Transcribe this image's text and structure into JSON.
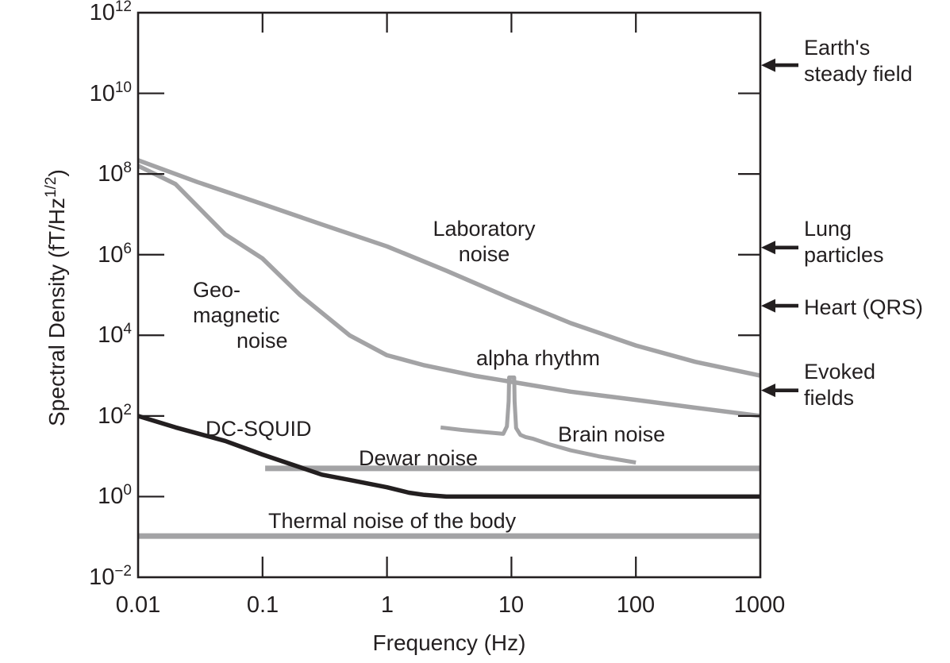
{
  "colors": {
    "curve_gray": "#a3a3a5",
    "curve_black": "#231f20",
    "frame": "#231f20",
    "text": "#231f20"
  },
  "chart_data": {
    "type": "line",
    "title": "",
    "xlabel": "Frequency (Hz)",
    "ylabel": "Spectral Density (fT/Hz^1/2)",
    "x_scale": "log",
    "y_scale": "log",
    "xlim": [
      0.01,
      1000
    ],
    "ylim": [
      0.01,
      1000000000000.0
    ],
    "grid": false,
    "legend": "labels drawn next to curves",
    "x_ticks": [
      {
        "log": -2,
        "label": "0.01"
      },
      {
        "log": -1,
        "label": "0.1"
      },
      {
        "log": 0,
        "label": "1"
      },
      {
        "log": 1,
        "label": "10"
      },
      {
        "log": 2,
        "label": "100"
      },
      {
        "log": 3,
        "label": "1000"
      }
    ],
    "y_ticks": [
      {
        "log": 12,
        "base": "10",
        "exp": "12"
      },
      {
        "log": 10,
        "base": "10",
        "exp": "10"
      },
      {
        "log": 8,
        "base": "10",
        "exp": "8"
      },
      {
        "log": 6,
        "base": "10",
        "exp": "6"
      },
      {
        "log": 4,
        "base": "10",
        "exp": "4"
      },
      {
        "log": 2,
        "base": "10",
        "exp": "2"
      },
      {
        "log": 0,
        "base": "10",
        "exp": "0"
      },
      {
        "log": -2,
        "base": "10",
        "exp": "−2"
      }
    ],
    "series": [
      {
        "name": "Laboratory noise",
        "color_key": "curve_gray",
        "width": 5.5,
        "points": [
          [
            0.01,
            220000000.0
          ],
          [
            0.03,
            63000000.0
          ],
          [
            0.1,
            18000000.0
          ],
          [
            0.3,
            5600000.0
          ],
          [
            1,
            1600000.0
          ],
          [
            3,
            400000.0
          ],
          [
            10,
            80000.0
          ],
          [
            30,
            20000.0
          ],
          [
            100,
            5600.0
          ],
          [
            300,
            2200.0
          ],
          [
            1000,
            1000.0
          ]
        ]
      },
      {
        "name": "Geomagnetic noise",
        "color_key": "curve_gray",
        "width": 5.5,
        "points": [
          [
            0.01,
            160000000.0
          ],
          [
            0.02,
            56000000.0
          ],
          [
            0.05,
            3200000.0
          ],
          [
            0.1,
            800000.0
          ],
          [
            0.2,
            100000.0
          ],
          [
            0.5,
            10000.0
          ],
          [
            1,
            3200.0
          ],
          [
            2,
            1800.0
          ],
          [
            5,
            1000.0
          ],
          [
            10,
            700.0
          ],
          [
            30,
            400.0
          ],
          [
            100,
            250.0
          ],
          [
            300,
            160.0
          ],
          [
            1000,
            100.0
          ]
        ]
      },
      {
        "name": "Dewar noise",
        "color_key": "curve_gray",
        "width": 7,
        "points": [
          [
            0.105,
            5
          ],
          [
            1000,
            5
          ]
        ]
      },
      {
        "name": "Thermal noise of the body",
        "color_key": "curve_gray",
        "width": 7,
        "points": [
          [
            0.01,
            0.105
          ],
          [
            1000,
            0.105
          ]
        ]
      },
      {
        "name": "Brain noise (with alpha rhythm peak at 10 Hz)",
        "color_key": "curve_gray",
        "width": 5,
        "points": [
          [
            2.7,
            52
          ],
          [
            4,
            45
          ],
          [
            6,
            40
          ],
          [
            8.6,
            36
          ],
          [
            9.2,
            55
          ],
          [
            9.5,
            230
          ],
          [
            9.58,
            900
          ],
          [
            10.52,
            900
          ],
          [
            10.6,
            230
          ],
          [
            10.9,
            50
          ],
          [
            11.8,
            34
          ],
          [
            13,
            30
          ],
          [
            15,
            27
          ],
          [
            20,
            20
          ],
          [
            30,
            14
          ],
          [
            50,
            10
          ],
          [
            100,
            7
          ]
        ]
      },
      {
        "name": "DC-SQUID",
        "color_key": "curve_black",
        "width": 5.5,
        "points": [
          [
            0.01,
            100
          ],
          [
            0.02,
            52
          ],
          [
            0.05,
            24
          ],
          [
            0.1,
            11
          ],
          [
            0.3,
            3.5
          ],
          [
            0.5,
            2.6
          ],
          [
            1,
            1.7
          ],
          [
            1.5,
            1.25
          ],
          [
            2,
            1.1
          ],
          [
            3,
            1.0
          ],
          [
            1000,
            1.0
          ]
        ]
      }
    ],
    "curve_labels": {
      "laboratory": {
        "line1": "Laboratory",
        "line2": "noise"
      },
      "geomagnetic": {
        "line1": "Geo-",
        "line2": "magnetic",
        "line3": "noise"
      },
      "alpha": "alpha rhythm",
      "brain": "Brain noise",
      "dcsquid": "DC-SQUID",
      "dewar": "Dewar noise",
      "thermal": "Thermal noise of the body"
    }
  },
  "axes": {
    "x_title": "Frequency (Hz)",
    "y_title_prefix": "Spectral Density (fT/Hz",
    "y_title_sup": "1/2",
    "y_title_suffix": ")"
  },
  "right_annotations": [
    {
      "line1": "Earth's",
      "line2": "steady field",
      "value_fT": 50000000000.0
    },
    {
      "line1": "Lung",
      "line2": "particles",
      "value_fT": 1500000.0
    },
    {
      "line1": "Heart (QRS)",
      "line2": "",
      "value_fT": 54000.0
    },
    {
      "line1": "Evoked",
      "line2": "fields",
      "value_fT": 430.0
    }
  ]
}
